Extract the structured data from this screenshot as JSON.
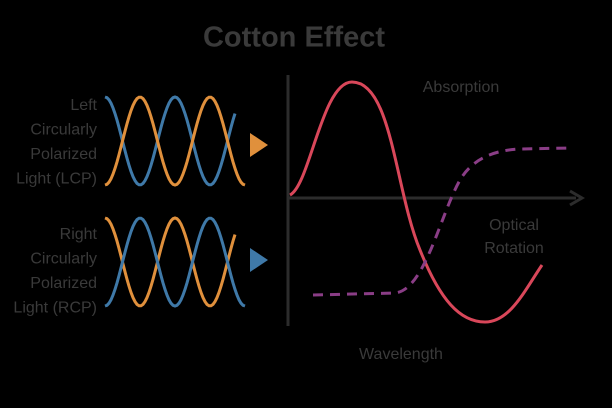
{
  "title": "Cotton Effect",
  "lcp_label": [
    "Left",
    "Circularly",
    "Polarized",
    "Light (LCP)"
  ],
  "rcp_label": [
    "Right",
    "Circularly",
    "Polarized",
    "Light (RCP)"
  ],
  "absorption_label": "Absorption",
  "optical_rotation_label": [
    "Optical",
    "Rotation"
  ],
  "x_axis_label": "Wavelength"
}
